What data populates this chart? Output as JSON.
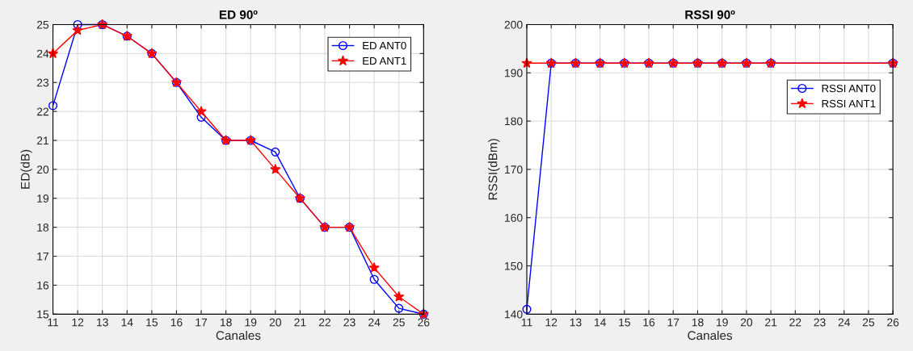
{
  "chart_data": [
    {
      "type": "line",
      "title": "ED 90º",
      "xlabel": "Canales",
      "ylabel": "ED(dB)",
      "x": [
        11,
        12,
        13,
        14,
        15,
        16,
        17,
        18,
        19,
        20,
        21,
        22,
        23,
        24,
        25,
        26
      ],
      "series": [
        {
          "name": "ED ANT0",
          "color": "#0000ff",
          "marker": "circle",
          "values": [
            22.2,
            25,
            25,
            24.6,
            24,
            23,
            21.8,
            21,
            21,
            20.6,
            19,
            18,
            18,
            16.2,
            15.2,
            15
          ]
        },
        {
          "name": "ED ANT1",
          "color": "#ff0000",
          "marker": "star",
          "values": [
            24,
            24.8,
            25,
            24.6,
            24,
            23,
            22,
            21,
            21,
            20,
            19,
            18,
            18,
            16.6,
            15.6,
            15
          ]
        }
      ],
      "xlim": [
        11,
        26
      ],
      "xticks": [
        11,
        12,
        13,
        14,
        15,
        16,
        17,
        18,
        19,
        20,
        21,
        22,
        23,
        24,
        25,
        26
      ],
      "ylim": [
        15,
        25
      ],
      "yticks": [
        15,
        16,
        17,
        18,
        19,
        20,
        21,
        22,
        23,
        24,
        25
      ],
      "grid": true,
      "legend": "top right"
    },
    {
      "type": "line",
      "title": "RSSI 90º",
      "xlabel": "Canales",
      "ylabel": "RSSI(dBm)",
      "x": [
        11,
        12,
        13,
        14,
        15,
        16,
        17,
        18,
        19,
        20,
        21,
        26
      ],
      "series": [
        {
          "name": "RSSI ANT0",
          "color": "#0000ff",
          "marker": "circle",
          "values": [
            141,
            192,
            192,
            192,
            192,
            192,
            192,
            192,
            192,
            192,
            192,
            192
          ]
        },
        {
          "name": "RSSI ANT1",
          "color": "#ff0000",
          "marker": "star",
          "values": [
            192,
            192,
            192,
            192,
            192,
            192,
            192,
            192,
            192,
            192,
            192,
            192
          ]
        }
      ],
      "xlim": [
        11,
        26
      ],
      "xticks": [
        11,
        12,
        13,
        14,
        15,
        16,
        17,
        18,
        19,
        20,
        21,
        22,
        23,
        24,
        25,
        26
      ],
      "ylim": [
        140,
        200
      ],
      "yticks": [
        140,
        150,
        160,
        170,
        180,
        190,
        200
      ],
      "grid": true,
      "legend": "right"
    }
  ]
}
